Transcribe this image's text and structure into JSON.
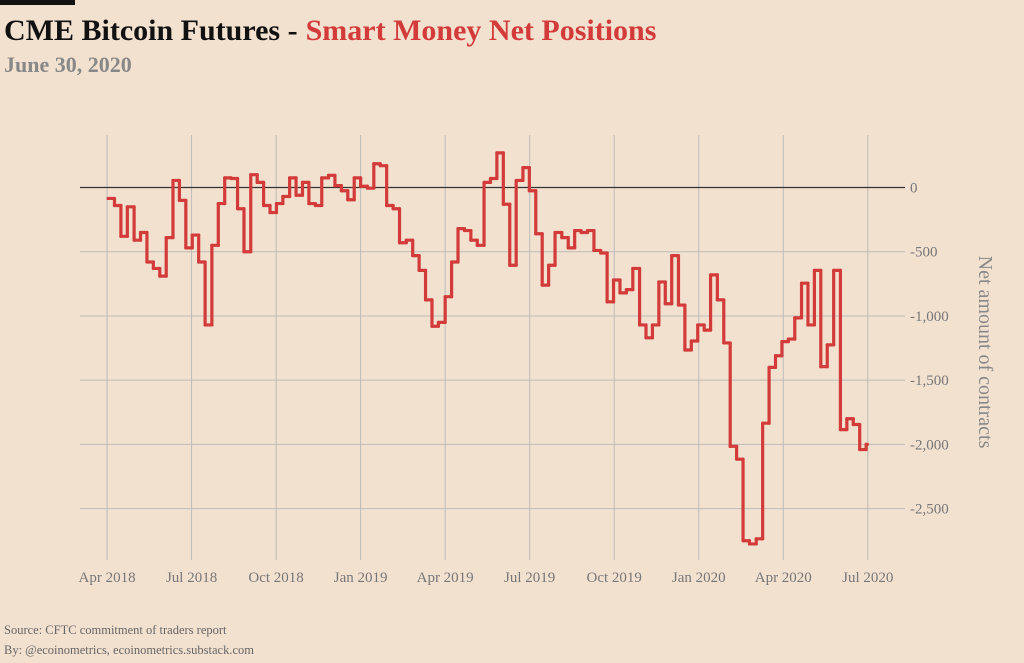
{
  "chart_data": {
    "type": "step",
    "title": [
      "CME Bitcoin Futures -",
      "Smart Money Net Positions"
    ],
    "subtitle": "June 30, 2020",
    "y_label": "Net amount of contracts",
    "notes": [
      "Source: CFTC commitment of traders report",
      "By: @ecoinometrics, ecoinometrics.substack.com"
    ],
    "color": "#d33a3a",
    "grid": true,
    "x": [
      2018.253,
      2018.272,
      2018.291,
      2018.31,
      2018.33,
      2018.349,
      2018.368,
      2018.387,
      2018.406,
      2018.425,
      2018.445,
      2018.464,
      2018.483,
      2018.502,
      2018.521,
      2018.54,
      2018.56,
      2018.579,
      2018.598,
      2018.617,
      2018.636,
      2018.655,
      2018.675,
      2018.694,
      2018.713,
      2018.732,
      2018.751,
      2018.77,
      2018.79,
      2018.809,
      2018.828,
      2018.847,
      2018.866,
      2018.885,
      2018.905,
      2018.924,
      2018.943,
      2018.962,
      2018.981,
      2019.0,
      2019.02,
      2019.039,
      2019.058,
      2019.077,
      2019.096,
      2019.115,
      2019.135,
      2019.154,
      2019.173,
      2019.192,
      2019.211,
      2019.23,
      2019.25,
      2019.269,
      2019.288,
      2019.307,
      2019.326,
      2019.345,
      2019.365,
      2019.384,
      2019.403,
      2019.422,
      2019.441,
      2019.46,
      2019.48,
      2019.499,
      2019.518,
      2019.537,
      2019.556,
      2019.575,
      2019.595,
      2019.614,
      2019.633,
      2019.652,
      2019.671,
      2019.69,
      2019.71,
      2019.729,
      2019.748,
      2019.767,
      2019.786,
      2019.805,
      2019.825,
      2019.844,
      2019.863,
      2019.882,
      2019.901,
      2019.92,
      2019.94,
      2019.959,
      2019.978,
      2019.997,
      2020.016,
      2020.035,
      2020.055,
      2020.074,
      2020.093,
      2020.112,
      2020.131,
      2020.15,
      2020.17,
      2020.189,
      2020.208,
      2020.227,
      2020.246,
      2020.265,
      2020.284,
      2020.304,
      2020.323,
      2020.342,
      2020.361,
      2020.38,
      2020.399,
      2020.419,
      2020.438,
      2020.457,
      2020.476,
      2020.495
    ],
    "values": [
      -85,
      -140,
      -380,
      -150,
      -410,
      -350,
      -580,
      -630,
      -690,
      -390,
      55,
      -100,
      -470,
      -370,
      -580,
      -1070,
      -450,
      -125,
      75,
      70,
      -165,
      -500,
      100,
      40,
      -140,
      -195,
      -125,
      -70,
      75,
      -60,
      40,
      -125,
      -140,
      75,
      95,
      15,
      -25,
      -95,
      75,
      10,
      -5,
      185,
      170,
      -140,
      -165,
      -430,
      -410,
      -530,
      -645,
      -875,
      -1080,
      -1050,
      -850,
      -580,
      -320,
      -335,
      -410,
      -450,
      40,
      70,
      270,
      -130,
      -605,
      55,
      155,
      -25,
      -360,
      -760,
      -605,
      -350,
      -390,
      -470,
      -335,
      -350,
      -335,
      -490,
      -510,
      -890,
      -720,
      -820,
      -795,
      -630,
      -1070,
      -1170,
      -1070,
      -735,
      -905,
      -530,
      -915,
      -1265,
      -1195,
      -1070,
      -1110,
      -680,
      -875,
      -1210,
      -2015,
      -2115,
      -2750,
      -2775,
      -2735,
      -1835,
      -1400,
      -1310,
      -1200,
      -1180,
      -1015,
      -745,
      -1070,
      -645,
      -1395,
      -1225,
      -645,
      -1885,
      -1800,
      -1845,
      -2040,
      -2000
    ],
    "xlim": [
      2018.17,
      2020.61
    ],
    "xticks": [
      {
        "value": 2018.25,
        "label": "Apr 2018"
      },
      {
        "value": 2018.5,
        "label": "Jul 2018"
      },
      {
        "value": 2018.75,
        "label": "Oct 2018"
      },
      {
        "value": 2019.0,
        "label": "Jan 2019"
      },
      {
        "value": 2019.25,
        "label": "Apr 2019"
      },
      {
        "value": 2019.5,
        "label": "Jul 2019"
      },
      {
        "value": 2019.75,
        "label": "Oct 2019"
      },
      {
        "value": 2020.0,
        "label": "Jan 2020"
      },
      {
        "value": 2020.25,
        "label": "Apr 2020"
      },
      {
        "value": 2020.5,
        "label": "Jul 2020"
      }
    ],
    "ylim": [
      -2900,
      370
    ],
    "yticks": [
      0,
      -500,
      {
        "value": -1000,
        "label": "-1,000"
      },
      {
        "value": -1500,
        "label": "-1,500"
      },
      {
        "value": -2000,
        "label": "-2,000"
      },
      {
        "value": -2500,
        "label": "-2,500"
      }
    ]
  }
}
